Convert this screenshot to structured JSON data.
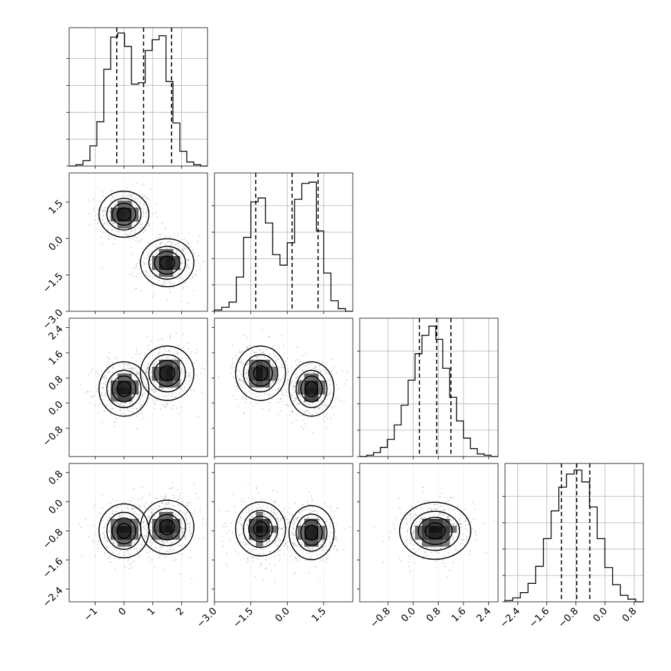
{
  "chart_data": {
    "type": "corner",
    "grid": true,
    "axes": [
      {
        "name": "x0",
        "range": [
          -1.9,
          2.9
        ],
        "ticks": [
          -1,
          0,
          1,
          2
        ],
        "tick_labels": [
          "−1",
          "0",
          "1",
          "2"
        ]
      },
      {
        "name": "x1",
        "range": [
          -3.0,
          2.7
        ],
        "ticks": [
          -3.0,
          -1.5,
          0.0,
          1.5
        ],
        "tick_labels": [
          "−3.0",
          "−1.5",
          "0.0",
          "1.5"
        ]
      },
      {
        "name": "x2",
        "range": [
          -1.7,
          2.7
        ],
        "ticks": [
          -0.8,
          0.0,
          0.8,
          1.6,
          2.4
        ],
        "tick_labels": [
          "−0.8",
          "0.0",
          "0.8",
          "1.6",
          "2.4"
        ]
      },
      {
        "name": "x3",
        "range": [
          -2.75,
          1.05
        ],
        "ticks": [
          -2.4,
          -1.6,
          -0.8,
          0.0,
          0.8
        ],
        "tick_labels": [
          "−2.4",
          "−1.6",
          "−0.8",
          "0.0",
          "0.8"
        ]
      }
    ],
    "histograms": [
      {
        "axis": 0,
        "quantiles": [
          -0.25,
          0.68,
          1.65
        ],
        "values": [
          0,
          0.01,
          0.04,
          0.15,
          0.33,
          0.72,
          0.96,
          0.99,
          0.89,
          0.61,
          0.62,
          0.86,
          0.94,
          0.97,
          0.63,
          0.32,
          0.11,
          0.03,
          0.01,
          0
        ],
        "ylim": [
          0,
          1.03
        ]
      },
      {
        "axis": 1,
        "quantiles": [
          -1.3,
          0.2,
          1.27
        ],
        "values": [
          0.01,
          0.03,
          0.07,
          0.26,
          0.56,
          0.83,
          0.86,
          0.67,
          0.43,
          0.35,
          0.52,
          0.85,
          0.97,
          0.98,
          0.61,
          0.29,
          0.08,
          0.02,
          0
        ],
        "ylim": [
          0,
          1.05
        ]
      },
      {
        "axis": 2,
        "quantiles": [
          0.2,
          0.75,
          1.2
        ],
        "values": [
          0,
          0.01,
          0.03,
          0.07,
          0.13,
          0.24,
          0.39,
          0.58,
          0.78,
          0.92,
          0.99,
          0.89,
          0.67,
          0.45,
          0.27,
          0.14,
          0.06,
          0.02,
          0.01,
          0
        ],
        "ylim": [
          0,
          1.05
        ]
      },
      {
        "axis": 3,
        "quantiles": [
          -1.2,
          -0.78,
          -0.42
        ],
        "values": [
          0.01,
          0.03,
          0.07,
          0.14,
          0.27,
          0.48,
          0.69,
          0.87,
          0.97,
          1.0,
          0.91,
          0.72,
          0.48,
          0.26,
          0.13,
          0.05,
          0.02,
          0
        ],
        "ylim": [
          0,
          1.05
        ]
      }
    ],
    "panels2d": [
      {
        "x": 0,
        "y": 1,
        "clusters": [
          {
            "mx": 0.0,
            "my": 1.0,
            "sx": 0.42,
            "sy": 0.46,
            "rho": 0
          },
          {
            "mx": 1.5,
            "my": -1.0,
            "sx": 0.45,
            "sy": 0.48,
            "rho": 0
          }
        ]
      },
      {
        "x": 0,
        "y": 2,
        "clusters": [
          {
            "mx": 0.0,
            "my": 0.45,
            "sx": 0.42,
            "sy": 0.42,
            "rho": 0
          },
          {
            "mx": 1.5,
            "my": 0.95,
            "sx": 0.45,
            "sy": 0.42,
            "rho": 0
          }
        ]
      },
      {
        "x": 1,
        "y": 2,
        "clusters": [
          {
            "mx": -1.1,
            "my": 0.95,
            "sx": 0.5,
            "sy": 0.42,
            "rho": 0
          },
          {
            "mx": 1.0,
            "my": 0.45,
            "sx": 0.45,
            "sy": 0.42,
            "rho": 0
          }
        ]
      },
      {
        "x": 0,
        "y": 3,
        "clusters": [
          {
            "mx": 0.0,
            "my": -0.8,
            "sx": 0.42,
            "sy": 0.36,
            "rho": 0
          },
          {
            "mx": 1.5,
            "my": -0.7,
            "sx": 0.45,
            "sy": 0.36,
            "rho": 0
          }
        ]
      },
      {
        "x": 1,
        "y": 3,
        "clusters": [
          {
            "mx": -1.1,
            "my": -0.75,
            "sx": 0.5,
            "sy": 0.36,
            "rho": 0
          },
          {
            "mx": 1.0,
            "my": -0.85,
            "sx": 0.45,
            "sy": 0.36,
            "rho": 0
          }
        ]
      },
      {
        "x": 2,
        "y": 3,
        "clusters": [
          {
            "mx": 0.7,
            "my": -0.8,
            "sx": 0.55,
            "sy": 0.38,
            "rho": 0
          }
        ]
      }
    ]
  }
}
